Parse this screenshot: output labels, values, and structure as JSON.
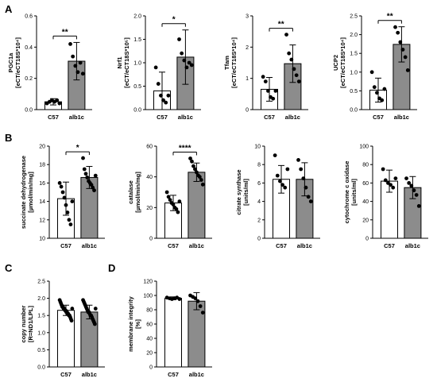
{
  "panel_letters": [
    "A",
    "B",
    "C",
    "D"
  ],
  "colors": {
    "control_bar": "#ffffff",
    "treated_bar": "#8c8c8c",
    "points": "#000000"
  },
  "chart_data": [
    {
      "id": "pgc1a",
      "panel": "A",
      "type": "bar",
      "categories": [
        "C57",
        "alb1c"
      ],
      "ylabel_lines": [
        "PGC1a",
        "[eCT/eCT18S*10⁴]"
      ],
      "ylim": [
        0,
        0.6
      ],
      "yticks": [
        0.0,
        0.2,
        0.4,
        0.6
      ],
      "tick_labels": [
        "0.0",
        "0.2",
        "0.4",
        "0.6"
      ],
      "means": [
        0.05,
        0.31
      ],
      "sd": [
        0.02,
        0.12
      ],
      "points": [
        [
          0.04,
          0.05,
          0.06,
          0.05,
          0.06,
          0.04
        ],
        [
          0.42,
          0.34,
          0.28,
          0.24,
          0.3,
          0.23
        ]
      ],
      "significance": "**"
    },
    {
      "id": "nrf1",
      "panel": "A",
      "type": "bar",
      "categories": [
        "C57",
        "alb1c"
      ],
      "ylabel_lines": [
        "Nrf1",
        "[eCT/eCT18S*10⁵]"
      ],
      "ylim": [
        0,
        2.0
      ],
      "yticks": [
        0.0,
        0.5,
        1.0,
        1.5,
        2.0
      ],
      "tick_labels": [
        "0.0",
        "0.5",
        "1.0",
        "1.5",
        "2.0"
      ],
      "means": [
        0.4,
        1.12
      ],
      "sd": [
        0.4,
        0.58
      ],
      "points": [
        [
          0.9,
          0.55,
          0.3,
          0.2,
          0.15,
          0.3
        ],
        [
          1.5,
          1.2,
          1.05,
          0.9,
          1.0,
          0.95
        ]
      ],
      "significance": "*"
    },
    {
      "id": "tfam",
      "panel": "A",
      "type": "bar",
      "categories": [
        "C57",
        "alb1c"
      ],
      "ylabel_lines": [
        "Tfam",
        "[eCT/eCT18S*10⁴]"
      ],
      "ylim": [
        0,
        3
      ],
      "yticks": [
        0,
        1,
        2,
        3
      ],
      "tick_labels": [
        "0",
        "1",
        "2",
        "3"
      ],
      "means": [
        0.65,
        1.47
      ],
      "sd": [
        0.38,
        0.6
      ],
      "points": [
        [
          1.05,
          0.9,
          0.6,
          0.4,
          0.35,
          0.6
        ],
        [
          2.4,
          1.8,
          1.6,
          1.3,
          1.1,
          0.9
        ]
      ],
      "significance": "**"
    },
    {
      "id": "ucp2",
      "panel": "A",
      "type": "bar",
      "categories": [
        "C57",
        "alb1c"
      ],
      "ylabel_lines": [
        "UCP2",
        "[eCT/eCT18S*10⁴]"
      ],
      "ylim": [
        0,
        2.5
      ],
      "yticks": [
        0.0,
        0.5,
        1.0,
        1.5,
        2.0,
        2.5
      ],
      "tick_labels": [
        "0.0",
        "0.5",
        "1.0",
        "1.5",
        "2.0",
        "2.5"
      ],
      "means": [
        0.52,
        1.74
      ],
      "sd": [
        0.32,
        0.47
      ],
      "points": [
        [
          1.0,
          0.6,
          0.45,
          0.3,
          0.25,
          0.55
        ],
        [
          2.2,
          2.05,
          1.8,
          1.6,
          1.4,
          1.05
        ]
      ],
      "significance": "**"
    },
    {
      "id": "sdh",
      "panel": "B",
      "type": "bar",
      "categories": [
        "C57",
        "alb1c"
      ],
      "ylabel_lines": [
        "succinate dehydrogenase",
        "[µmol/min/mg]"
      ],
      "ylim": [
        10,
        20
      ],
      "yticks": [
        10,
        12,
        14,
        16,
        18,
        20
      ],
      "tick_labels": [
        "10",
        "12",
        "14",
        "16",
        "18",
        "20"
      ],
      "means": [
        14.3,
        16.6
      ],
      "sd": [
        1.8,
        1.2
      ],
      "points": [
        [
          16.0,
          15.6,
          15.0,
          14.4,
          13.6,
          12.8,
          12.0,
          11.5,
          14.0
        ],
        [
          18.7,
          17.5,
          17.0,
          16.6,
          16.2,
          16.0,
          15.8,
          15.5,
          15.2,
          16.8
        ]
      ],
      "significance": "*"
    },
    {
      "id": "catalase",
      "panel": "B",
      "type": "bar",
      "categories": [
        "C57",
        "alb1c"
      ],
      "ylabel_lines": [
        "catalase",
        "[µmol/min/mg]"
      ],
      "ylim": [
        0,
        60
      ],
      "yticks": [
        0,
        20,
        40,
        60
      ],
      "tick_labels": [
        "0",
        "20",
        "40",
        "60"
      ],
      "means": [
        23,
        43
      ],
      "sd": [
        5,
        6
      ],
      "points": [
        [
          30,
          27,
          25,
          23,
          22,
          20,
          19,
          17,
          24
        ],
        [
          52,
          50,
          47,
          45,
          43,
          41,
          40,
          38,
          35
        ]
      ],
      "significance": "****"
    },
    {
      "id": "cs",
      "panel": "B",
      "type": "bar",
      "categories": [
        "C57",
        "alb1c"
      ],
      "ylabel_lines": [
        "citrate synthase",
        "[units/ml]"
      ],
      "ylim": [
        0,
        10
      ],
      "yticks": [
        0,
        2,
        4,
        6,
        8,
        10
      ],
      "tick_labels": [
        "0",
        "2",
        "4",
        "6",
        "8",
        "10"
      ],
      "means": [
        6.4,
        6.4
      ],
      "sd": [
        1.5,
        1.8
      ],
      "points": [
        [
          9.0,
          6.8,
          6.2,
          5.8,
          5.5,
          7.5
        ],
        [
          8.5,
          7.5,
          6.5,
          5.5,
          4.5,
          4.0
        ]
      ],
      "significance": ""
    },
    {
      "id": "cox",
      "panel": "B",
      "type": "bar",
      "categories": [
        "C57",
        "alb1c"
      ],
      "ylabel_lines": [
        "cytochrome c oxidase",
        "[units/ml]"
      ],
      "ylim": [
        0,
        100
      ],
      "yticks": [
        0,
        20,
        40,
        60,
        80,
        100
      ],
      "tick_labels": [
        "0",
        "20",
        "40",
        "60",
        "80",
        "100"
      ],
      "means": [
        62,
        55
      ],
      "sd": [
        12,
        12
      ],
      "points": [
        [
          75,
          63,
          60,
          58,
          55,
          65
        ],
        [
          65,
          60,
          57,
          52,
          47,
          35
        ]
      ],
      "significance": ""
    },
    {
      "id": "copy",
      "panel": "C",
      "type": "bar",
      "categories": [
        "C57",
        "alb1c"
      ],
      "ylabel_lines": [
        "copy number",
        "[R=ND1/LPL]"
      ],
      "ylim": [
        0,
        2.5
      ],
      "yticks": [
        0.0,
        0.5,
        1.0,
        1.5,
        2.0,
        2.5
      ],
      "tick_labels": [
        "0.0",
        "0.5",
        "1.0",
        "1.5",
        "2.0",
        "2.5"
      ],
      "means": [
        1.65,
        1.6
      ],
      "sd": [
        0.15,
        0.2
      ],
      "points": [
        [
          1.95,
          1.9,
          1.85,
          1.8,
          1.75,
          1.75,
          1.7,
          1.7,
          1.65,
          1.65,
          1.6,
          1.6,
          1.55,
          1.55,
          1.5,
          1.5,
          1.45,
          1.4,
          1.35,
          1.7
        ],
        [
          1.95,
          1.9,
          1.85,
          1.8,
          1.75,
          1.7,
          1.65,
          1.6,
          1.6,
          1.55,
          1.5,
          1.5,
          1.45,
          1.4,
          1.35,
          1.3,
          1.25,
          1.7
        ]
      ],
      "significance": ""
    },
    {
      "id": "membrane",
      "panel": "D",
      "type": "bar",
      "categories": [
        "C57",
        "alb1c"
      ],
      "ylabel_lines": [
        "membrane integrity",
        "[%]"
      ],
      "ylim": [
        0,
        120
      ],
      "yticks": [
        0,
        20,
        40,
        60,
        80,
        100,
        120
      ],
      "tick_labels": [
        "0",
        "20",
        "40",
        "60",
        "80",
        "100",
        "120"
      ],
      "means": [
        96,
        92
      ],
      "sd": [
        2,
        12
      ],
      "points": [
        [
          97,
          96,
          95,
          96,
          97,
          95
        ],
        [
          100,
          98,
          96,
          92,
          85,
          76
        ]
      ],
      "significance": ""
    }
  ]
}
